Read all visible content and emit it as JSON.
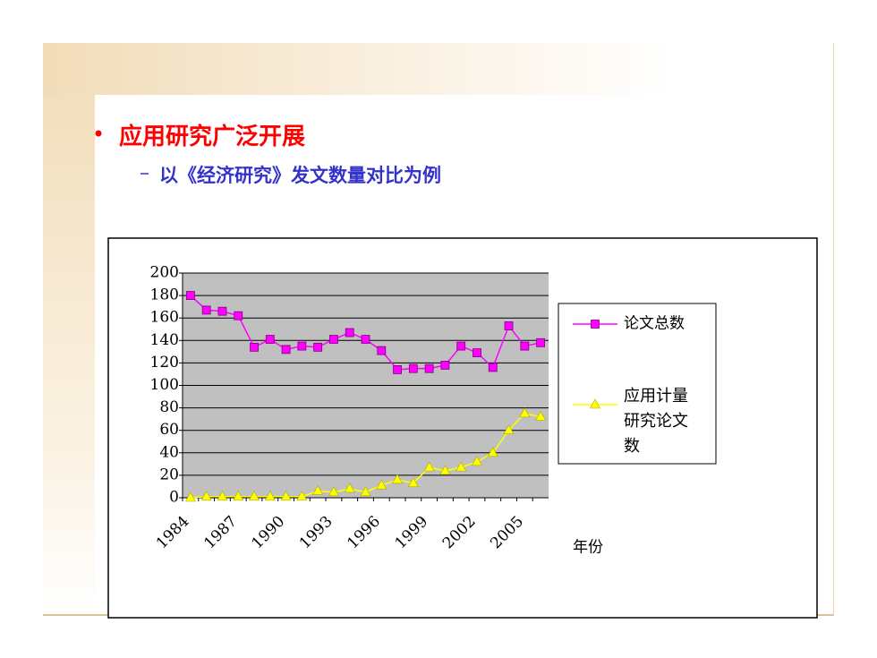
{
  "slide": {
    "bullet": "应用研究广泛开展",
    "sub_bullet": "以《经济研究》发文数量对比为例"
  },
  "chart_data": {
    "type": "line",
    "xlabel": "年份",
    "categories": [
      "1984",
      null,
      null,
      "1987",
      null,
      null,
      "1990",
      null,
      null,
      "1993",
      null,
      null,
      "1996",
      null,
      null,
      "1999",
      null,
      null,
      "2002",
      null,
      null,
      "2005",
      null
    ],
    "series": [
      {
        "name": "论文总数",
        "color": "#ff00ff",
        "marker": "square",
        "values": [
          180,
          167,
          166,
          162,
          134,
          141,
          132,
          135,
          134,
          141,
          147,
          141,
          131,
          114,
          115,
          115,
          118,
          135,
          129,
          116,
          153,
          135,
          138
        ]
      },
      {
        "name": "应用计量研究论文数",
        "color": "#ffff00",
        "marker": "triangle",
        "values": [
          0,
          1,
          1,
          1,
          1,
          1,
          1,
          1,
          6,
          5,
          8,
          5,
          11,
          16,
          13,
          27,
          24,
          27,
          32,
          40,
          60,
          75,
          72
        ]
      }
    ],
    "ylim": [
      0,
      200
    ],
    "yticks": [
      0,
      20,
      40,
      60,
      80,
      100,
      120,
      140,
      160,
      180,
      200
    ],
    "grid": true,
    "legend": "right"
  }
}
